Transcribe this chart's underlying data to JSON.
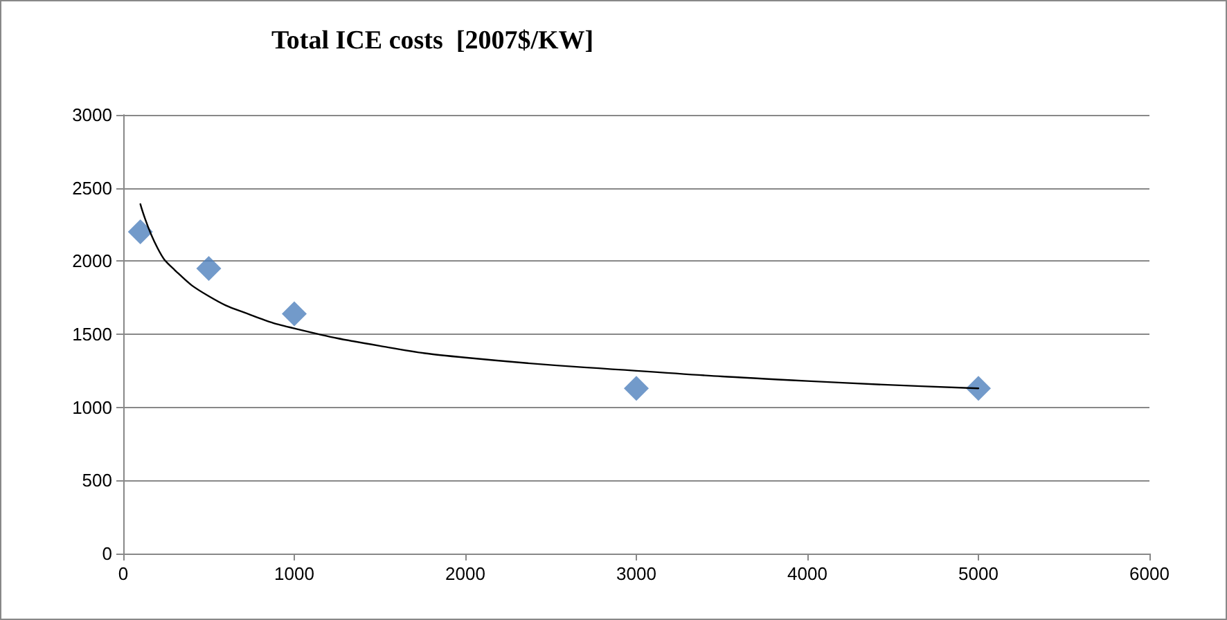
{
  "chart_data": {
    "type": "scatter",
    "title": "Total ICE costs  [2007$/KW]",
    "series": [
      {
        "type": "scatter",
        "color": "#4f81bd",
        "marker": "diamond",
        "x": [
          100,
          500,
          1000,
          3000,
          5000
        ],
        "values": [
          2200,
          1950,
          1640,
          1130,
          1130
        ]
      },
      {
        "type": "line",
        "color": "#000000",
        "marker": "none",
        "x": [
          100,
          200,
          300,
          500,
          750,
          1000,
          1500,
          2000,
          3000,
          4000,
          5000
        ],
        "values": [
          2390,
          2090,
          1940,
          1760,
          1630,
          1540,
          1420,
          1340,
          1250,
          1180,
          1130
        ]
      }
    ],
    "xlim": [
      0,
      6000
    ],
    "xticks": [
      0,
      1000,
      2000,
      3000,
      4000,
      5000,
      6000
    ],
    "ylim": [
      0,
      3000
    ],
    "yticks": [
      0,
      500,
      1000,
      1500,
      2000,
      2500,
      3000
    ],
    "grid": "y"
  }
}
